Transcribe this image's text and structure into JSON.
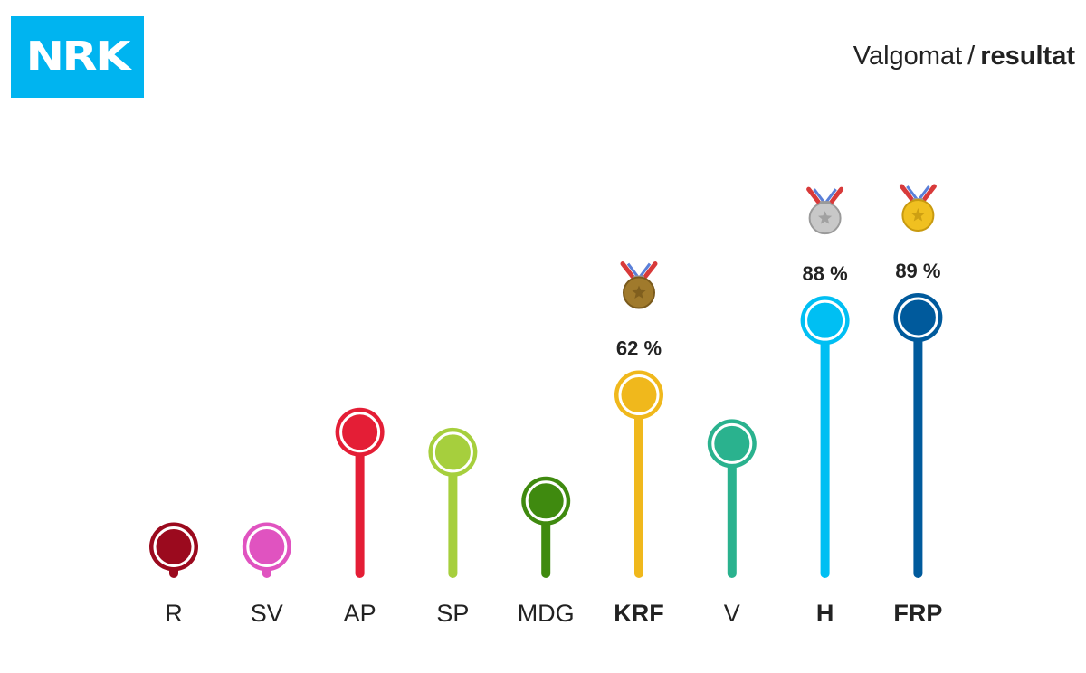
{
  "header": {
    "logo_text": "NRK",
    "title_prefix": "Valgomat",
    "title_separator": "/",
    "title_emphasis": "resultat"
  },
  "colors": {
    "logo_bg": "#00b4f0",
    "medal_gold": "#f0c020",
    "medal_silver": "#c8c8c8",
    "medal_bronze": "#a07a2c"
  },
  "chart_data": {
    "type": "bar",
    "title": "Valgomat / resultat",
    "xlabel": "",
    "ylabel": "",
    "ylim": [
      0,
      100
    ],
    "grid": false,
    "categories": [
      "R",
      "SV",
      "AP",
      "SP",
      "MDG",
      "KRF",
      "V",
      "H",
      "FRP"
    ],
    "values": [
      9,
      9,
      49,
      42,
      25,
      62,
      45,
      88,
      89
    ],
    "colors": [
      "#9b0a1e",
      "#e053c0",
      "#e41e36",
      "#a6cf3d",
      "#3f8a0f",
      "#f0b81c",
      "#2ab28e",
      "#00bff3",
      "#005a9c"
    ],
    "highlighted": [
      false,
      false,
      false,
      false,
      false,
      true,
      false,
      true,
      true
    ],
    "value_labels": [
      "",
      "",
      "",
      "",
      "",
      "62 %",
      "",
      "88 %",
      "89 %"
    ],
    "medals": [
      "",
      "",
      "",
      "",
      "",
      "bronze-medal-icon",
      "",
      "silver-medal-icon",
      "gold-medal-icon"
    ]
  }
}
